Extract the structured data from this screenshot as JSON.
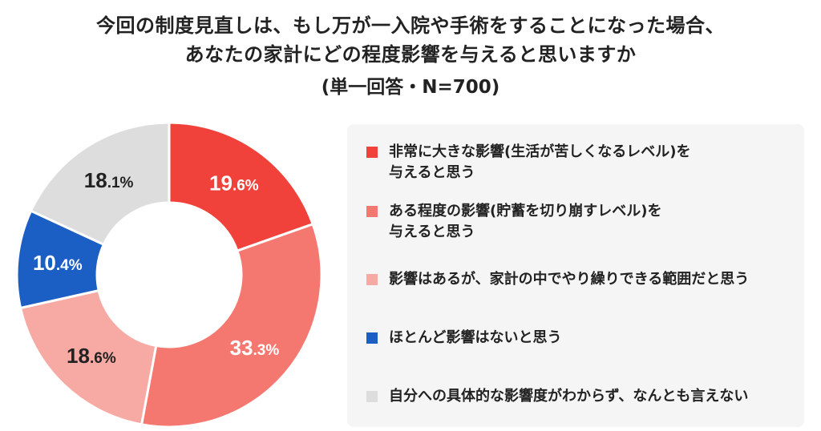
{
  "title_lines": [
    "今回の制度見直しは、もし万が一入院や手術をすることになった場合、",
    "あなたの家計にどの程度影響を与えると思いますか"
  ],
  "subtitle": "(単一回答・N=700)",
  "chart_data": {
    "type": "pie",
    "donut": true,
    "categories": [
      "非常に大きな影響(生活が苦しくなるレベル)を与えると思う",
      "ある程度の影響(貯蓄を切り崩すレベル)を与えると思う",
      "影響はあるが、家計の中でやり繰りできる範囲だと思う",
      "ほとんど影響はないと思う",
      "自分への具体的な影響度がわからず、なんとも言えない"
    ],
    "values": [
      19.6,
      33.3,
      18.6,
      10.4,
      18.1
    ],
    "value_labels": [
      {
        "int": "19",
        "dec": ".6%"
      },
      {
        "int": "33",
        "dec": ".3%"
      },
      {
        "int": "18",
        "dec": ".6%"
      },
      {
        "int": "10",
        "dec": ".4%"
      },
      {
        "int": "18",
        "dec": ".1%"
      }
    ],
    "colors": [
      "#f0423a",
      "#f4786f",
      "#f7aaa4",
      "#1b5fc4",
      "#dddddd"
    ],
    "label_colors": [
      "#ffffff",
      "#ffffff",
      "#222222",
      "#ffffff",
      "#222222"
    ],
    "legend_position": "right"
  },
  "legend": [
    {
      "lines": [
        "非常に大きな影響(生活が苦しくなるレベル)を",
        "与えると思う"
      ]
    },
    {
      "lines": [
        "ある程度の影響(貯蓄を切り崩すレベル)を",
        "与えると思う"
      ]
    },
    {
      "lines": [
        "影響はあるが、家計の中でやり繰りできる範囲だと思う"
      ]
    },
    {
      "lines": [
        "ほとんど影響はないと思う"
      ]
    },
    {
      "lines": [
        "自分への具体的な影響度がわからず、なんとも言えない"
      ]
    }
  ]
}
